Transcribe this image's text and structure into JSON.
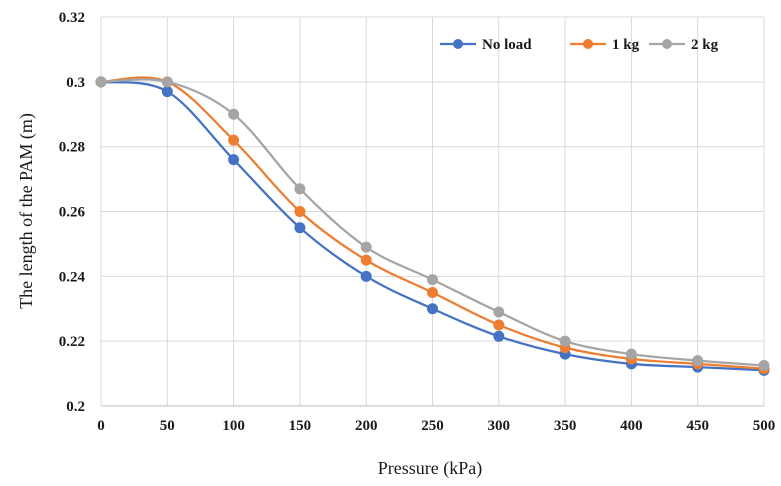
{
  "chart_data": {
    "type": "line",
    "title": "",
    "xlabel": "Pressure (kPa)",
    "ylabel": "The length of the PAM (m)",
    "xlim": [
      0,
      500
    ],
    "ylim": [
      0.2,
      0.32
    ],
    "x_ticks": [
      "0",
      "50",
      "100",
      "150",
      "200",
      "250",
      "300",
      "350",
      "400",
      "450",
      "500"
    ],
    "y_ticks": [
      "0.2",
      "0.22",
      "0.24",
      "0.26",
      "0.28",
      "0.3",
      "0.32"
    ],
    "x_tick_values": [
      0,
      50,
      100,
      150,
      200,
      250,
      300,
      350,
      400,
      450,
      500
    ],
    "y_tick_values": [
      0.2,
      0.22,
      0.24,
      0.26,
      0.28,
      0.3,
      0.32
    ],
    "grid": true,
    "legend_position": "top-right",
    "x": [
      0,
      50,
      100,
      150,
      200,
      250,
      300,
      350,
      400,
      450,
      500
    ],
    "series": [
      {
        "name": "No load",
        "color": "#4472C4",
        "values": [
          0.3,
          0.297,
          0.276,
          0.255,
          0.24,
          0.23,
          0.2215,
          0.216,
          0.213,
          0.212,
          0.211
        ]
      },
      {
        "name": "1 kg",
        "color": "#ED7D31",
        "values": [
          0.3,
          0.3,
          0.282,
          0.26,
          0.245,
          0.235,
          0.225,
          0.218,
          0.2145,
          0.213,
          0.2115
        ]
      },
      {
        "name": "2 kg",
        "color": "#A5A5A5",
        "values": [
          0.3,
          0.3,
          0.29,
          0.267,
          0.249,
          0.239,
          0.229,
          0.22,
          0.216,
          0.214,
          0.2125
        ]
      }
    ]
  }
}
